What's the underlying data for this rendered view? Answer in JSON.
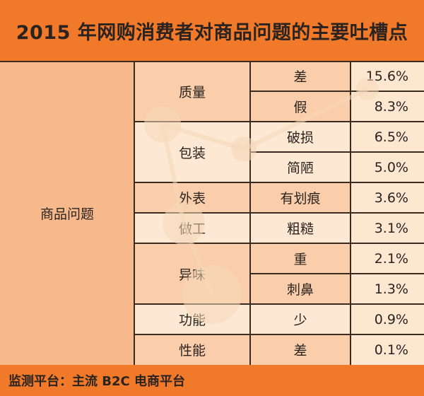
{
  "title": "2015 年网购消费者对商品问题的主要吐槽点",
  "footer": "监测平台：主流 B2C 电商平台",
  "category": "商品问题",
  "groups": [
    {
      "label": "质量",
      "items": [
        {
          "issue": "差",
          "value": "15.6%"
        },
        {
          "issue": "假",
          "value": "8.3%"
        }
      ]
    },
    {
      "label": "包装",
      "items": [
        {
          "issue": "破损",
          "value": "6.5%"
        },
        {
          "issue": "简陋",
          "value": "5.0%"
        }
      ]
    },
    {
      "label": "外表",
      "items": [
        {
          "issue": "有划痕",
          "value": "3.6%"
        }
      ]
    },
    {
      "label": "做工",
      "items": [
        {
          "issue": "粗糙",
          "value": "3.1%"
        }
      ]
    },
    {
      "label": "异味",
      "items": [
        {
          "issue": "重",
          "value": "2.1%"
        },
        {
          "issue": "刺鼻",
          "value": "1.3%"
        }
      ]
    },
    {
      "label": "功能",
      "items": [
        {
          "issue": "少",
          "value": "0.9%"
        }
      ]
    },
    {
      "label": "性能",
      "items": [
        {
          "issue": "差",
          "value": "0.1%"
        }
      ]
    }
  ],
  "colors": {
    "header": "#f07a2a",
    "body": "#fde7d0",
    "accent": "#f7b98b",
    "line": "#3a2a20"
  }
}
